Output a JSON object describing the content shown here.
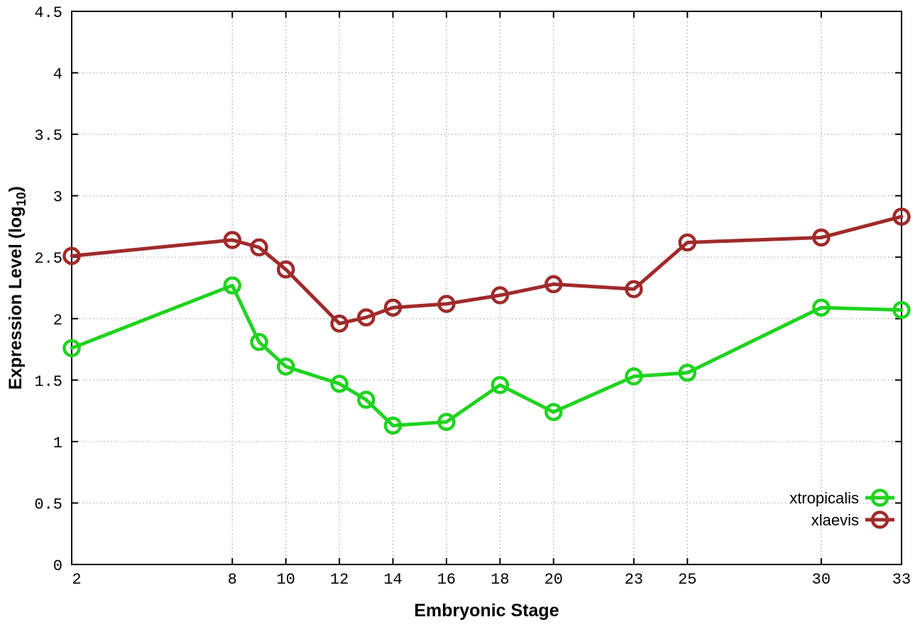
{
  "chart_data": {
    "type": "line",
    "title": "",
    "xlabel": "Embryonic Stage",
    "ylabel_prefix": "Expression Level (log",
    "ylabel_sub": "10",
    "ylabel_suffix": ")",
    "x": [
      2,
      8,
      9,
      10,
      12,
      13,
      14,
      16,
      18,
      20,
      23,
      25,
      30,
      33
    ],
    "series": [
      {
        "name": "xtropicalis",
        "color": "#1fd31f",
        "values": [
          1.76,
          2.27,
          1.81,
          1.61,
          1.47,
          1.34,
          1.13,
          1.16,
          1.46,
          1.24,
          1.53,
          1.56,
          2.09,
          2.07
        ]
      },
      {
        "name": "xlaevis",
        "color": "#a02a2a",
        "values": [
          2.51,
          2.64,
          2.58,
          2.4,
          1.96,
          2.01,
          2.09,
          2.12,
          2.19,
          2.28,
          2.24,
          2.62,
          2.66,
          2.83
        ]
      }
    ],
    "xticks": {
      "values": [
        2,
        8,
        10,
        12,
        14,
        16,
        18,
        20,
        23,
        25,
        30,
        33
      ],
      "labels": [
        "2",
        "8",
        "10",
        "12",
        "14",
        "16",
        "18",
        "20",
        "23",
        "25",
        "30",
        "33"
      ]
    },
    "yticks": {
      "values": [
        0,
        0.5,
        1,
        1.5,
        2,
        2.5,
        3,
        3.5,
        4,
        4.5
      ],
      "labels": [
        "0",
        "0.5",
        "1",
        "1.5",
        "2",
        "2.5",
        "3",
        "3.5",
        "4",
        "4.5"
      ]
    },
    "xlim": [
      2,
      33
    ],
    "ylim": [
      0,
      4.5
    ],
    "grid": true,
    "legend_position": "bottom-right",
    "marker": "open-circle",
    "grid_color": "#b0b0b0",
    "axis_color": "#000000",
    "background": "#ffffff"
  }
}
